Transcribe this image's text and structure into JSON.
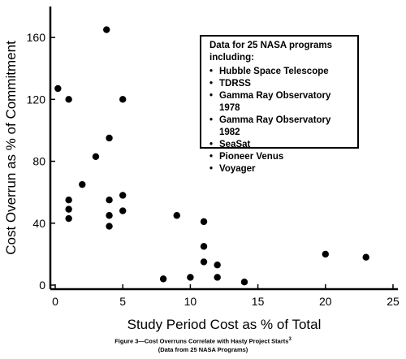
{
  "chart_data": {
    "type": "scatter",
    "xlabel": "Study Period Cost as % of Total",
    "ylabel": "Cost Overrun as % of Commitment",
    "xlim": [
      0,
      25
    ],
    "ylim": [
      0,
      180
    ],
    "x_ticks": [
      0,
      5,
      10,
      15,
      20,
      25
    ],
    "y_ticks": [
      0,
      40,
      80,
      120,
      160
    ],
    "grid": false,
    "points": [
      {
        "x": 0.2,
        "y": 127
      },
      {
        "x": 1.0,
        "y": 120
      },
      {
        "x": 1.0,
        "y": 55
      },
      {
        "x": 1.0,
        "y": 49
      },
      {
        "x": 1.0,
        "y": 43
      },
      {
        "x": 2.0,
        "y": 65
      },
      {
        "x": 3.0,
        "y": 83
      },
      {
        "x": 3.8,
        "y": 165
      },
      {
        "x": 4.0,
        "y": 95
      },
      {
        "x": 4.0,
        "y": 55
      },
      {
        "x": 4.0,
        "y": 45
      },
      {
        "x": 4.0,
        "y": 38
      },
      {
        "x": 5.0,
        "y": 120
      },
      {
        "x": 5.0,
        "y": 58
      },
      {
        "x": 5.0,
        "y": 48
      },
      {
        "x": 8.0,
        "y": 4
      },
      {
        "x": 9.0,
        "y": 45
      },
      {
        "x": 10.0,
        "y": 5
      },
      {
        "x": 11.0,
        "y": 41
      },
      {
        "x": 11.0,
        "y": 25
      },
      {
        "x": 11.0,
        "y": 15
      },
      {
        "x": 12.0,
        "y": 13
      },
      {
        "x": 12.0,
        "y": 5
      },
      {
        "x": 14.0,
        "y": 2
      },
      {
        "x": 20.0,
        "y": 20
      },
      {
        "x": 23.0,
        "y": 18
      }
    ],
    "legend": {
      "placement": "top-right",
      "heading": "Data for 25 NASA programs including:",
      "items": [
        "Hubble Space Telescope",
        "TDRSS",
        "Gamma Ray Observatory 1978",
        "Gamma Ray Observatory 1982",
        "SeaSat",
        "Pioneer Venus",
        "Voyager"
      ]
    },
    "marker_color": "#000000"
  },
  "caption": {
    "line1": "Figure 3—Cost Overruns Correlate with Hasty Project Starts",
    "line1_superscript": "3",
    "line2": "(Data from 25 NASA Programs)"
  }
}
